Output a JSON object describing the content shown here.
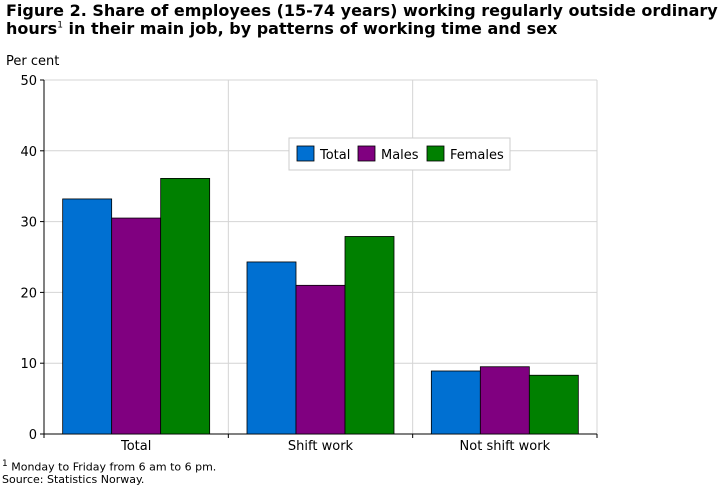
{
  "title": {
    "line1": "Figure 2.  Share of employees (15-74 years) working regularly outside ordinary",
    "line2_main": "hours",
    "line2_sup": "1",
    "line2_rest": "  in their main job, by patterns of working time and sex"
  },
  "footnote": {
    "sup": "1",
    "text": " Monday to Friday from 6 am to 6 pm."
  },
  "source": "Source: Statistics Norway.",
  "chart_data": {
    "type": "bar",
    "title": "Figure 2.  Share of employees (15-74 years) working regularly outside ordinary hours1  in their main job, by patterns of working time and sex",
    "ylabel": "Per cent",
    "xlabel": "",
    "ylim": [
      0,
      50
    ],
    "yticks": [
      0,
      10,
      20,
      30,
      40,
      50
    ],
    "grid": true,
    "legend_position": "top-right",
    "categories": [
      "Total",
      "Shift work",
      "Not shift work"
    ],
    "series": [
      {
        "name": "Total",
        "color": "#0070d2",
        "values": [
          33.2,
          24.3,
          8.9
        ]
      },
      {
        "name": "Males",
        "color": "#800080",
        "values": [
          30.5,
          21.0,
          9.5
        ]
      },
      {
        "name": "Females",
        "color": "#008000",
        "values": [
          36.1,
          27.9,
          8.3
        ]
      }
    ]
  }
}
